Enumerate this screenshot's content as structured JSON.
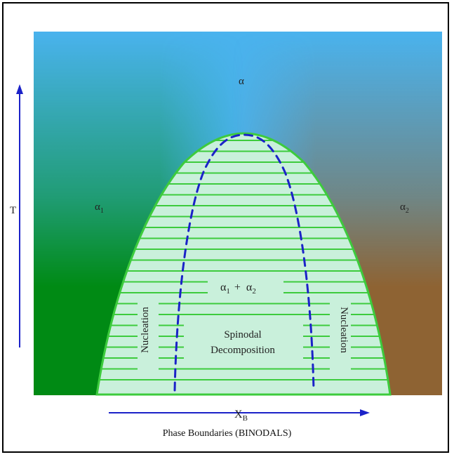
{
  "axes": {
    "y_label": "T",
    "x_label": "X",
    "x_label_subscript": "B"
  },
  "regions": {
    "top": "α",
    "left": "α",
    "left_sub": "1",
    "right": "α",
    "right_sub": "2",
    "center_a": "α",
    "center_a_sub": "1",
    "center_plus": "+",
    "center_b": "α",
    "center_b_sub": "2"
  },
  "annotations": {
    "nucleation_left": "Nucleation",
    "nucleation_right": "Nucleation",
    "spinodal_line1": "Spinodal",
    "spinodal_line2": "Decomposition"
  },
  "caption": "Phase Boundaries (BINODALS)",
  "colors": {
    "alpha_blue": "#4ab3ee",
    "alpha1_green": "#008a14",
    "alpha2_brown": "#8e6333",
    "dome_fill": "#c9f0db",
    "binodal_green": "#3dcb3d",
    "spinodal_blue": "#1b22c8",
    "axis_blue": "#1b22c8"
  }
}
